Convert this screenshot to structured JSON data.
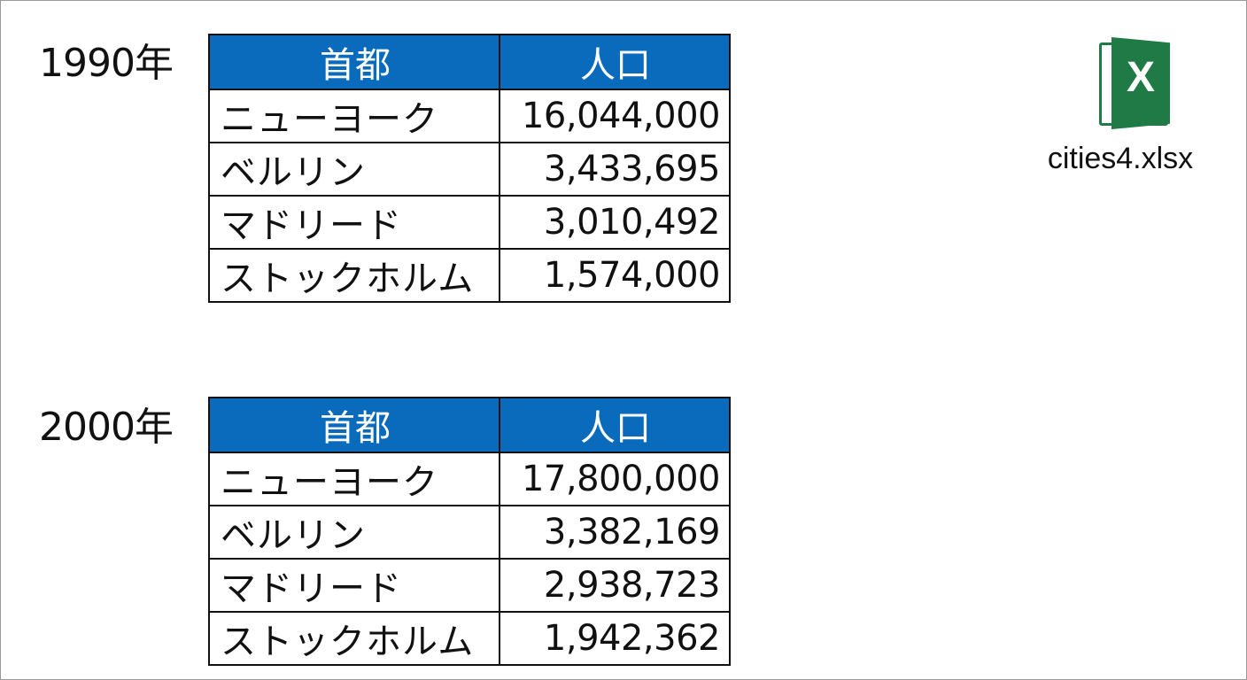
{
  "tables": [
    {
      "year": "1990年",
      "headers": [
        "首都",
        "人口"
      ],
      "rows": [
        {
          "city": "ニューヨーク",
          "population": "16,044,000"
        },
        {
          "city": "ベルリン",
          "population": "3,433,695"
        },
        {
          "city": "マドリード",
          "population": "3,010,492"
        },
        {
          "city": "ストックホルム",
          "population": "1,574,000"
        }
      ]
    },
    {
      "year": "2000年",
      "headers": [
        "首都",
        "人口"
      ],
      "rows": [
        {
          "city": "ニューヨーク",
          "population": "17,800,000"
        },
        {
          "city": "ベルリン",
          "population": "3,382,169"
        },
        {
          "city": "マドリード",
          "population": "2,938,723"
        },
        {
          "city": "ストックホルム",
          "population": "1,942,362"
        }
      ]
    }
  ],
  "file": {
    "name": "cities4.xlsx",
    "icon": "excel-icon"
  },
  "colors": {
    "header_background": "#0a6bbd",
    "excel_green": "#1f7a45"
  }
}
